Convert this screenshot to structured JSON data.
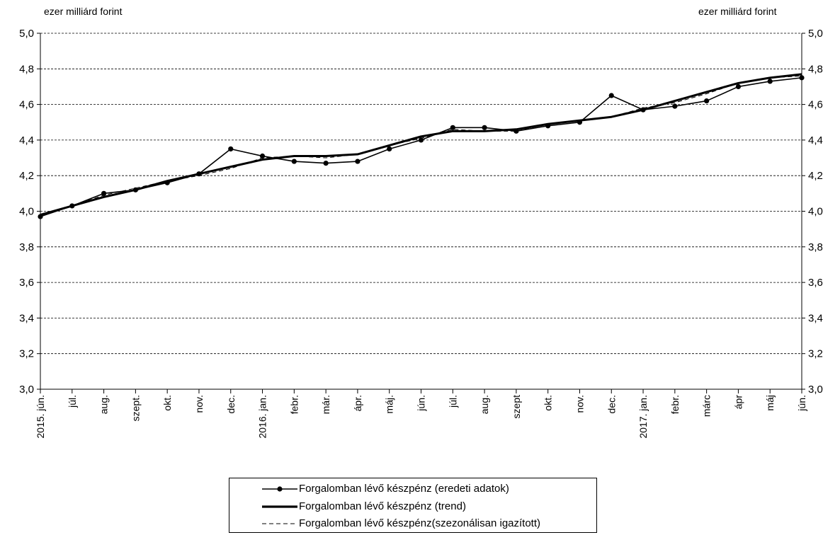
{
  "chart_data": {
    "type": "line",
    "left_axis_unit": "ezer milliárd forint",
    "right_axis_unit": "ezer milliárd forint",
    "ylim": [
      3.0,
      5.0
    ],
    "yticks": [
      "3,0",
      "3,2",
      "3,4",
      "3,6",
      "3,8",
      "4,0",
      "4,2",
      "4,4",
      "4,6",
      "4,8",
      "5,0"
    ],
    "ytick_values": [
      3.0,
      3.2,
      3.4,
      3.6,
      3.8,
      4.0,
      4.2,
      4.4,
      4.6,
      4.8,
      5.0
    ],
    "grid": "horizontal dashed",
    "legend_position": "bottom-center",
    "categories": [
      "2015. jún.",
      "júl.",
      "aug.",
      "szept.",
      "okt.",
      "nov.",
      "dec.",
      "2016. jan.",
      "febr.",
      "már.",
      "ápr.",
      "máj.",
      "jún.",
      "júl.",
      "aug.",
      "szept",
      "okt.",
      "nov.",
      "dec.",
      "2017. jan.",
      "febr.",
      "márc",
      "ápr",
      "máj",
      "jún."
    ],
    "series": [
      {
        "name": "Forgalomban lévő készpénz (eredeti adatok)",
        "style": "thin-line-with-markers",
        "color": "#000000",
        "values": [
          3.97,
          4.03,
          4.1,
          4.12,
          4.16,
          4.21,
          4.35,
          4.31,
          4.28,
          4.27,
          4.28,
          4.35,
          4.4,
          4.47,
          4.47,
          4.45,
          4.48,
          4.5,
          4.65,
          4.57,
          4.59,
          4.62,
          4.7,
          4.73,
          4.75
        ]
      },
      {
        "name": "Forgalomban lévő készpénz (trend)",
        "style": "thick-line",
        "color": "#000000",
        "values": [
          3.98,
          4.03,
          4.08,
          4.12,
          4.17,
          4.21,
          4.25,
          4.29,
          4.31,
          4.31,
          4.32,
          4.37,
          4.42,
          4.45,
          4.45,
          4.46,
          4.49,
          4.51,
          4.53,
          4.57,
          4.62,
          4.67,
          4.72,
          4.75,
          4.77
        ]
      },
      {
        "name": "Forgalomban lévő készpénz(szezonálisan igazított)",
        "style": "dashed-line",
        "color": "#000000",
        "values": [
          3.98,
          4.03,
          4.09,
          4.13,
          4.17,
          4.2,
          4.24,
          4.3,
          4.31,
          4.3,
          4.32,
          4.37,
          4.41,
          4.46,
          4.45,
          4.45,
          4.49,
          4.51,
          4.53,
          4.58,
          4.61,
          4.66,
          4.72,
          4.75,
          4.76
        ]
      }
    ]
  }
}
